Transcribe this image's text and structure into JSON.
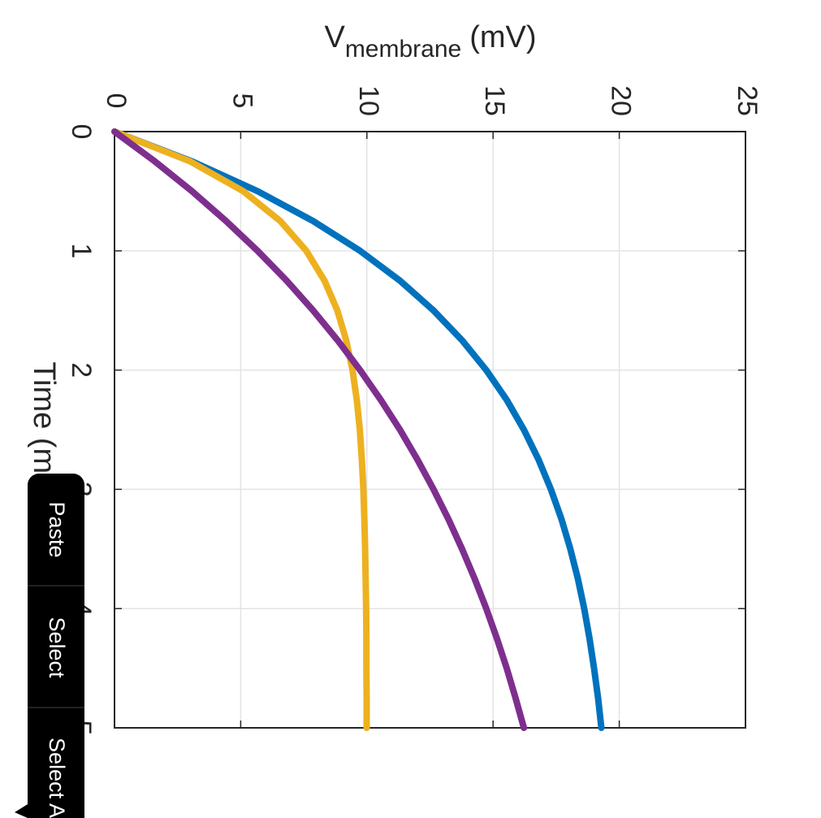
{
  "chart_data": {
    "type": "line",
    "y_label": {
      "main": "V",
      "subscript": "membrane",
      "unit": "(mV)"
    },
    "x_label": "Time (ms)",
    "x": [
      0,
      0.25,
      0.5,
      0.75,
      1,
      1.25,
      1.5,
      1.75,
      2,
      2.25,
      2.5,
      2.75,
      3,
      3.25,
      3.5,
      3.75,
      4,
      4.25,
      4.5,
      4.75,
      5
    ],
    "series": [
      {
        "color": "#0072bd",
        "values": [
          0,
          3.07,
          5.67,
          7.87,
          9.73,
          11.31,
          12.64,
          13.77,
          14.73,
          15.54,
          16.22,
          16.8,
          17.29,
          17.71,
          18.06,
          18.36,
          18.61,
          18.82,
          19.0,
          19.16,
          19.29
        ]
      },
      {
        "color": "#edb120",
        "values": [
          0,
          3.0,
          5.1,
          6.57,
          7.6,
          8.32,
          8.83,
          9.18,
          9.43,
          9.6,
          9.72,
          9.8,
          9.86,
          9.9,
          9.93,
          9.95,
          9.97,
          9.98,
          9.98,
          9.99,
          9.99
        ]
      },
      {
        "color": "#7e2f8e",
        "values": [
          0,
          1.6,
          3.07,
          4.42,
          5.67,
          6.82,
          7.87,
          8.84,
          9.73,
          10.55,
          11.31,
          12.0,
          12.64,
          13.23,
          13.77,
          14.27,
          14.73,
          15.15,
          15.54,
          15.89,
          16.22
        ]
      }
    ],
    "xlim": [
      0,
      5
    ],
    "xticks": [
      0,
      1,
      2,
      3,
      4,
      5
    ],
    "ylim": [
      0,
      25
    ],
    "yticks": [
      0,
      5,
      10,
      15,
      20,
      25
    ],
    "grid": true
  },
  "menu": {
    "items": [
      "Paste",
      "Select",
      "Select All"
    ]
  }
}
